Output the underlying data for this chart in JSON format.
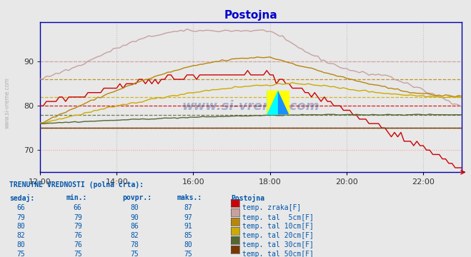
{
  "title": "Postojna",
  "title_color": "#0000cc",
  "bg_color": "#e8e8e8",
  "plot_bg_color": "#e8e8e8",
  "xlim": [
    0,
    132
  ],
  "ylim": [
    65,
    99
  ],
  "yticks": [
    70,
    80,
    90
  ],
  "xtick_labels": [
    "12:00",
    "14:00",
    "16:00",
    "18:00",
    "20:00",
    "22:00"
  ],
  "xtick_positions": [
    0,
    24,
    48,
    72,
    96,
    120
  ],
  "grid_h_color": "#ff9999",
  "grid_v_color": "#c0c0c0",
  "watermark": "www.si-vreme.com",
  "watermark_color": "#1a3a8a",
  "sidebar_text": "www.si-vreme.com",
  "series": [
    {
      "name": "temp. zraka[F]",
      "color": "#cc0000",
      "avg": 80,
      "min": 66,
      "max": 87,
      "sedaj": 66
    },
    {
      "name": "temp. tal  5cm[F]",
      "color": "#c8a0a0",
      "avg": 90,
      "min": 79,
      "max": 97,
      "sedaj": 79
    },
    {
      "name": "temp. tal 10cm[F]",
      "color": "#b8860b",
      "avg": 86,
      "min": 79,
      "max": 91,
      "sedaj": 80
    },
    {
      "name": "temp. tal 20cm[F]",
      "color": "#ccaa00",
      "avg": 82,
      "min": 76,
      "max": 85,
      "sedaj": 82
    },
    {
      "name": "temp. tal 30cm[F]",
      "color": "#556633",
      "avg": 78,
      "min": 76,
      "max": 80,
      "sedaj": 80
    },
    {
      "name": "temp. tal 50cm[F]",
      "color": "#7a3800",
      "avg": 75,
      "min": 75,
      "max": 75,
      "sedaj": 75
    }
  ],
  "table_header": "TRENUTNE VREDNOSTI (polna črta):",
  "table_cols": [
    "sedaj:",
    "min.:",
    "povpr.:",
    "maks.:",
    "Postojna"
  ],
  "table_rows": [
    [
      66,
      66,
      80,
      87,
      "temp. zraka[F]",
      "#cc0000"
    ],
    [
      79,
      79,
      90,
      97,
      "temp. tal  5cm[F]",
      "#c8a0a0"
    ],
    [
      80,
      79,
      86,
      91,
      "temp. tal 10cm[F]",
      "#b8860b"
    ],
    [
      82,
      76,
      82,
      85,
      "temp. tal 20cm[F]",
      "#ccaa00"
    ],
    [
      80,
      76,
      78,
      80,
      "temp. tal 30cm[F]",
      "#556633"
    ],
    [
      75,
      75,
      75,
      75,
      "temp. tal 50cm[F]",
      "#7a3800"
    ]
  ],
  "label_color": "#0055aa",
  "axis_color": "#0000cc"
}
